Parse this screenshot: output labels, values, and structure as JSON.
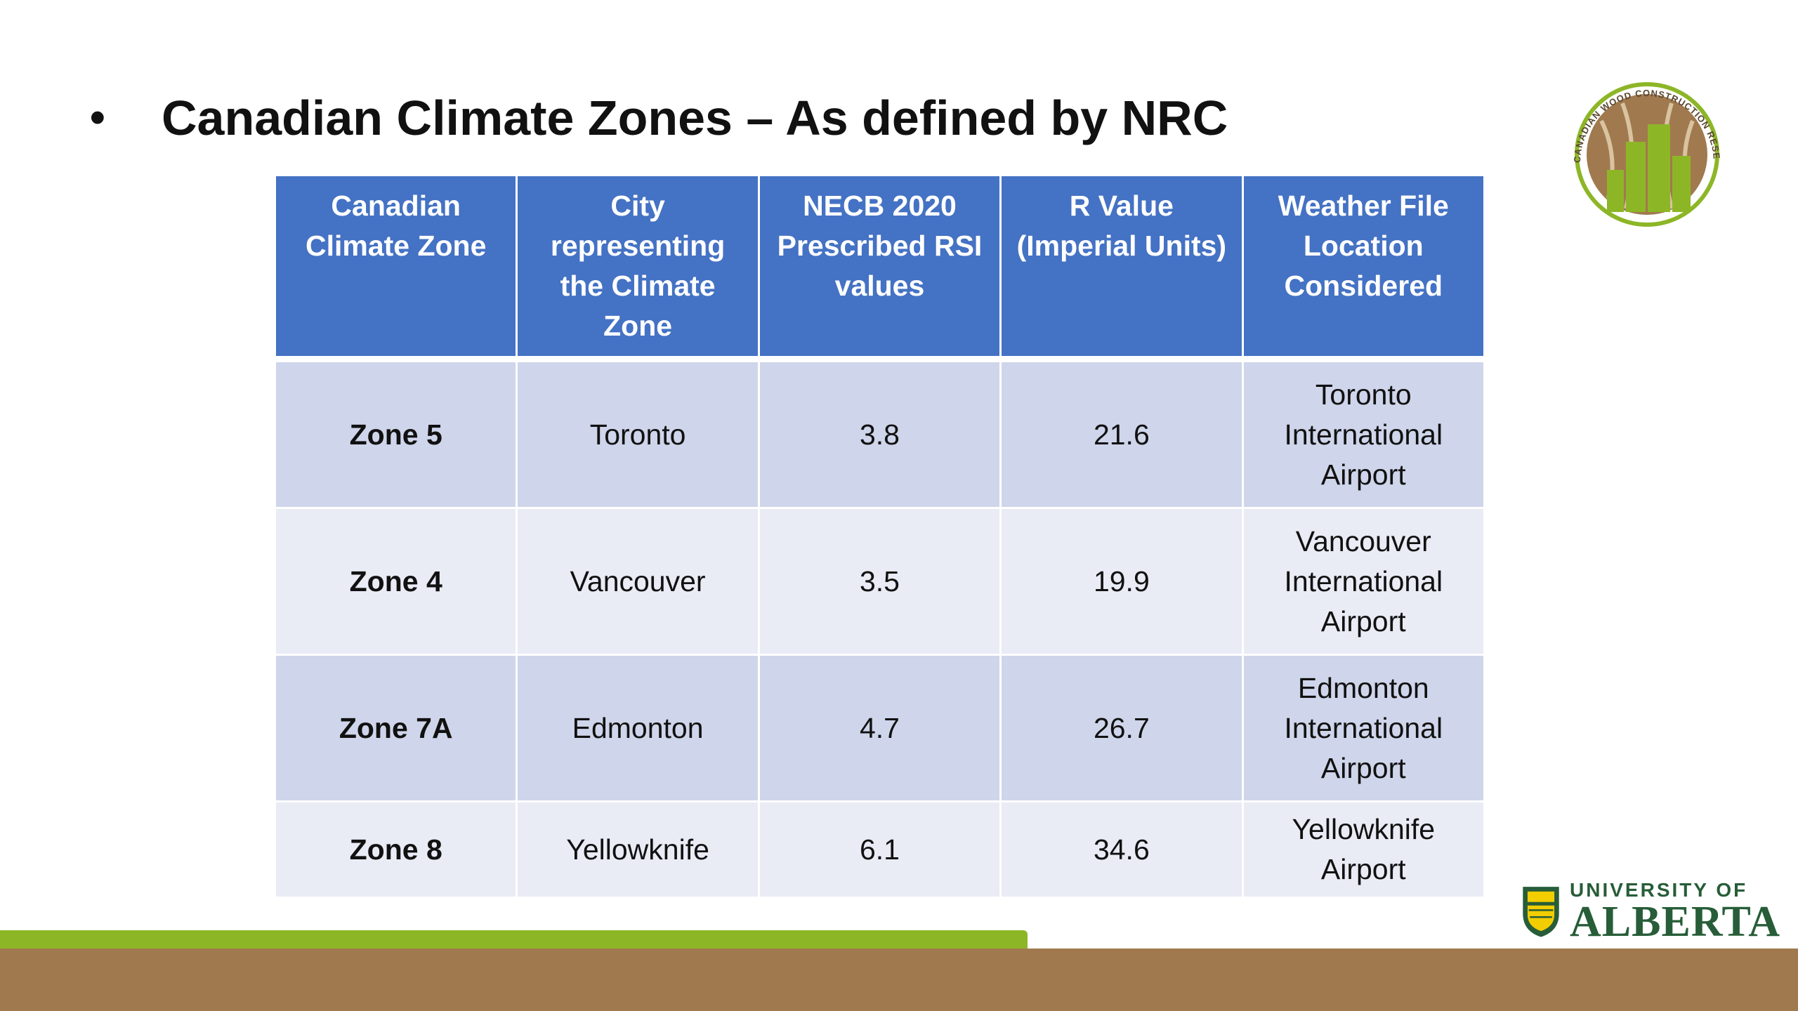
{
  "slide": {
    "bullet": "•",
    "title": "Canadian Climate Zones – As defined by NRC"
  },
  "table": {
    "headers": [
      "Canadian Climate Zone",
      "City representing the Climate Zone",
      "NECB 2020 Prescribed RSI values",
      "R Value (Imperial Units)",
      "Weather File Location Considered"
    ],
    "rows": [
      {
        "zone": "Zone 5",
        "city": "Toronto",
        "rsi": "3.8",
        "r_value": "21.6",
        "weather_file": "Toronto International Airport"
      },
      {
        "zone": "Zone 4",
        "city": "Vancouver",
        "rsi": "3.5",
        "r_value": "19.9",
        "weather_file": "Vancouver International Airport"
      },
      {
        "zone": "Zone 7A",
        "city": "Edmonton",
        "rsi": "4.7",
        "r_value": "26.7",
        "weather_file": "Edmonton International Airport"
      },
      {
        "zone": "Zone 8",
        "city": "Yellowknife",
        "rsi": "6.1",
        "r_value": "34.6",
        "weather_file": "Yellowknife Airport"
      }
    ]
  },
  "logos": {
    "cwc_ring_text": "CANADIAN WOOD CONSTRUCTION RESEARCH NETWORK",
    "ua_small": "UNIVERSITY OF",
    "ua_big": "ALBERTA"
  },
  "colors": {
    "header_blue": "#4472c4",
    "row_dark": "#cfd5ea",
    "row_light": "#e9ebf5",
    "bar_green": "#8db627",
    "bar_brown": "#a1794e",
    "ua_green": "#275d38"
  }
}
